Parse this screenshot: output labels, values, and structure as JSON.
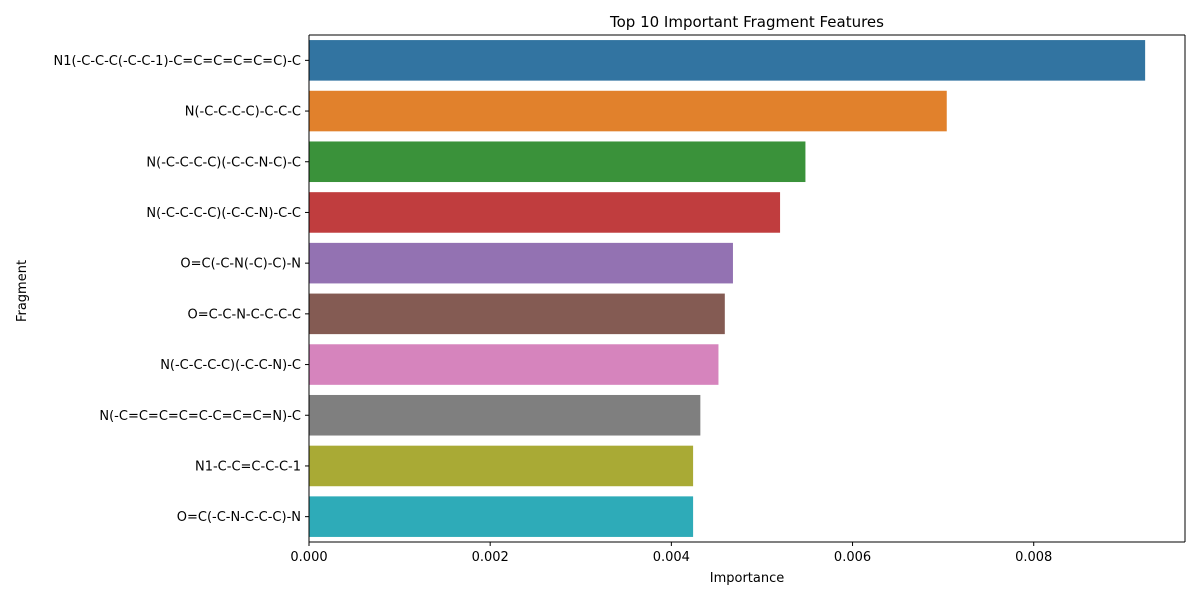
{
  "chart_data": {
    "type": "bar",
    "orientation": "horizontal",
    "title": "Top 10 Important Fragment Features",
    "xlabel": "Importance",
    "ylabel": "Fragment",
    "xlim": [
      0,
      0.00967
    ],
    "xticks": [
      {
        "value": 0,
        "label": "0.000"
      },
      {
        "value": 0.002,
        "label": "0.002"
      },
      {
        "value": 0.004,
        "label": "0.004"
      },
      {
        "value": 0.006,
        "label": "0.006"
      },
      {
        "value": 0.008,
        "label": "0.008"
      }
    ],
    "grid": false,
    "legend": "none",
    "categories": [
      "N1(-C-C-C(-C-C-1)-C=C=C=C=C=C)-C",
      "N(-C-C-C-C)-C-C-C",
      "N(-C-C-C-C)(-C-C-N-C)-C",
      "N(-C-C-C-C)(-C-C-N)-C-C",
      "O=C(-C-N(-C)-C)-N",
      "O=C-C-N-C-C-C-C",
      "N(-C-C-C-C)(-C-C-N)-C",
      "N(-C=C=C=C=C-C=C=C=N)-C",
      "N1-C-C=C-C-C-1",
      "O=C(-C-N-C-C-C)-N"
    ],
    "values": [
      0.00923,
      0.00704,
      0.00548,
      0.0052,
      0.00468,
      0.00459,
      0.00452,
      0.00432,
      0.00424,
      0.00424
    ],
    "colors": [
      "#3274a1",
      "#e1812c",
      "#3a923a",
      "#c03d3e",
      "#9372b2",
      "#845b53",
      "#d684bd",
      "#7f7f7f",
      "#a9aa35",
      "#2eabb8"
    ]
  }
}
